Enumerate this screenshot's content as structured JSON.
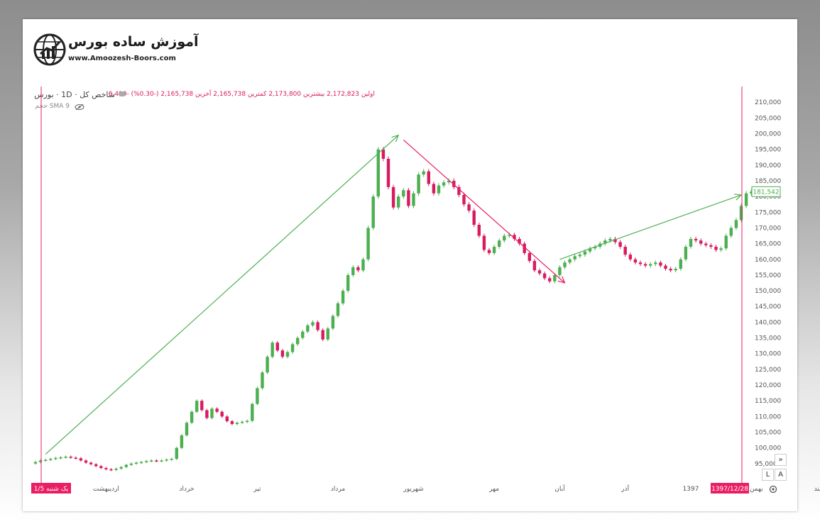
{
  "logo": {
    "title": "آموزش ساده بورس",
    "url": "www.Amoozesh-Boors.com",
    "icon": "globe-chart-icon"
  },
  "legend": {
    "symbol": "شاخص کل · 1D · بورس",
    "ohlc": "اولین 2,172,823  بیشترین 2,173,800  کمترین 2,165,738  آخرین 2,165,738  (-0.30%) -6,490",
    "indicator": "SMA 9 حجم"
  },
  "controls": {
    "expand": "»",
    "log": "L",
    "auto": "A"
  },
  "colors": {
    "up": "#4caf50",
    "down": "#d81b60",
    "arrow_up": "#4caf50",
    "arrow_down": "#e91e63",
    "marker": "#e91e63"
  },
  "chart_data": {
    "type": "candlestick",
    "ylim": [
      90000,
      215000
    ],
    "y_ticks": [
      95000,
      100000,
      105000,
      110000,
      115000,
      120000,
      125000,
      130000,
      135000,
      140000,
      145000,
      150000,
      155000,
      160000,
      165000,
      170000,
      175000,
      180000,
      185000,
      190000,
      195000,
      200000,
      205000,
      210000
    ],
    "y_tick_labels": [
      "95,000",
      "100,000",
      "105,000",
      "110,000",
      "115,000",
      "120,000",
      "125,000",
      "130,000",
      "135,000",
      "140,000",
      "145,000",
      "150,000",
      "155,000",
      "160,000",
      "165,000",
      "170,000",
      "175,000",
      "180,000",
      "185,000",
      "190,000",
      "195,000",
      "200,000",
      "205,000",
      "210,000"
    ],
    "last_price_label": "181,542",
    "last_price": 181542,
    "x_labels": [
      "اردیبهشت",
      "خرداد",
      "تیر",
      "مرداد",
      "شهریور",
      "مهر",
      "آبان",
      "آذر",
      "1397",
      "بهمن",
      "اسفند"
    ],
    "x_label_index": [
      14,
      30,
      44,
      60,
      75,
      91,
      104,
      117,
      130,
      143,
      156
    ],
    "start_marker_label": "یک شنبه 1/5",
    "end_marker_label": "1397/12/28",
    "closes": [
      95500,
      96000,
      96200,
      96500,
      96800,
      97000,
      97200,
      96900,
      96700,
      96000,
      95300,
      94800,
      94200,
      93600,
      93200,
      93000,
      93400,
      93900,
      94600,
      95000,
      95300,
      95500,
      95800,
      96000,
      95800,
      96000,
      96300,
      96500,
      100000,
      104000,
      108000,
      111500,
      115000,
      112000,
      109500,
      112500,
      111500,
      110000,
      108500,
      107600,
      108000,
      108300,
      108600,
      114000,
      119000,
      124000,
      129000,
      133500,
      131000,
      129000,
      130500,
      133000,
      135000,
      137000,
      139000,
      140000,
      137500,
      134500,
      138000,
      142000,
      146000,
      150000,
      155000,
      157500,
      156500,
      160000,
      170000,
      180000,
      195000,
      192000,
      183000,
      176500,
      180000,
      182000,
      177000,
      181000,
      187000,
      188000,
      184000,
      181000,
      183500,
      184500,
      185000,
      183000,
      180500,
      177500,
      175500,
      171000,
      167500,
      163000,
      162000,
      164000,
      166000,
      167500,
      167800,
      166500,
      165000,
      162000,
      159500,
      156500,
      155500,
      154000,
      153000,
      155000,
      157500,
      159000,
      160000,
      161000,
      161500,
      162500,
      163500,
      164000,
      165000,
      166000,
      166500,
      165500,
      164000,
      161500,
      160000,
      159000,
      158500,
      158000,
      158500,
      159000,
      158000,
      157000,
      156500,
      157000,
      160000,
      164000,
      166500,
      166000,
      165000,
      164500,
      164000,
      163000,
      163500,
      167500,
      170000,
      172500,
      177000,
      181000,
      181542
    ]
  }
}
